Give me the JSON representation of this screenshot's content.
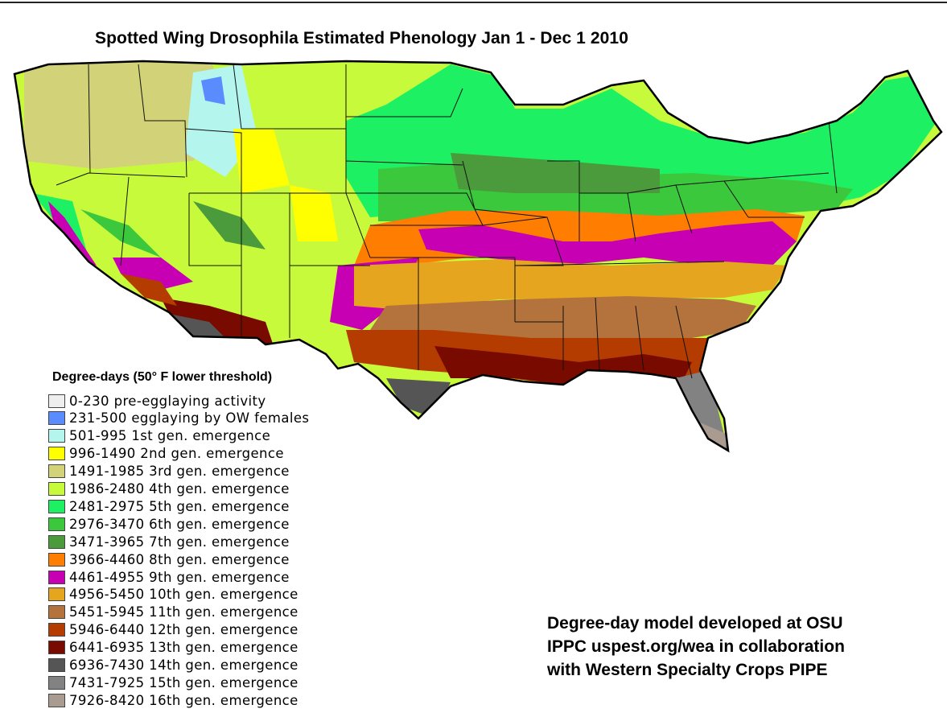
{
  "map": {
    "title": "Spotted Wing Drosophila Estimated Phenology Jan 1 - Dec 1 2010",
    "region": "Contiguous United States"
  },
  "legend": {
    "title": "Degree-days (50° F lower threshold)",
    "items": [
      {
        "label": "0-230  pre-egglaying activity",
        "color": "#eeeeee"
      },
      {
        "label": "231-500 egglaying by OW females",
        "color": "#5a8cff"
      },
      {
        "label": "501-995  1st gen. emergence",
        "color": "#b4f5ee"
      },
      {
        "label": "996-1490  2nd gen. emergence",
        "color": "#ffff00"
      },
      {
        "label": "1491-1985  3rd gen. emergence",
        "color": "#d2d278"
      },
      {
        "label": "1986-2480  4th gen. emergence",
        "color": "#c8fa3c"
      },
      {
        "label": "2481-2975  5th gen. emergence",
        "color": "#1ef064"
      },
      {
        "label": "2976-3470  6th gen. emergence",
        "color": "#3cc83c"
      },
      {
        "label": "3471-3965  7th gen. emergence",
        "color": "#4b9b3c"
      },
      {
        "label": "3966-4460  8th gen. emergence",
        "color": "#ff7d00"
      },
      {
        "label": "4461-4955  9th gen. emergence",
        "color": "#c800b4"
      },
      {
        "label": "4956-5450  10th gen. emergence",
        "color": "#e6a51e"
      },
      {
        "label": "5451-5945  11th gen. emergence",
        "color": "#b4733c"
      },
      {
        "label": "5946-6440  12th gen. emergence",
        "color": "#b43c00"
      },
      {
        "label": "6441-6935  13th gen. emergence",
        "color": "#780a00"
      },
      {
        "label": "6936-7430  14th gen. emergence",
        "color": "#555555"
      },
      {
        "label": "7431-7925  15th gen. emergence",
        "color": "#828282"
      },
      {
        "label": "7926-8420  16th gen. emergence",
        "color": "#aa9b91"
      }
    ]
  },
  "credit": {
    "line1": "Degree-day model developed at OSU",
    "line2": "IPPC uspest.org/wea in collaboration",
    "line3": "with Western Specialty Crops PIPE"
  }
}
